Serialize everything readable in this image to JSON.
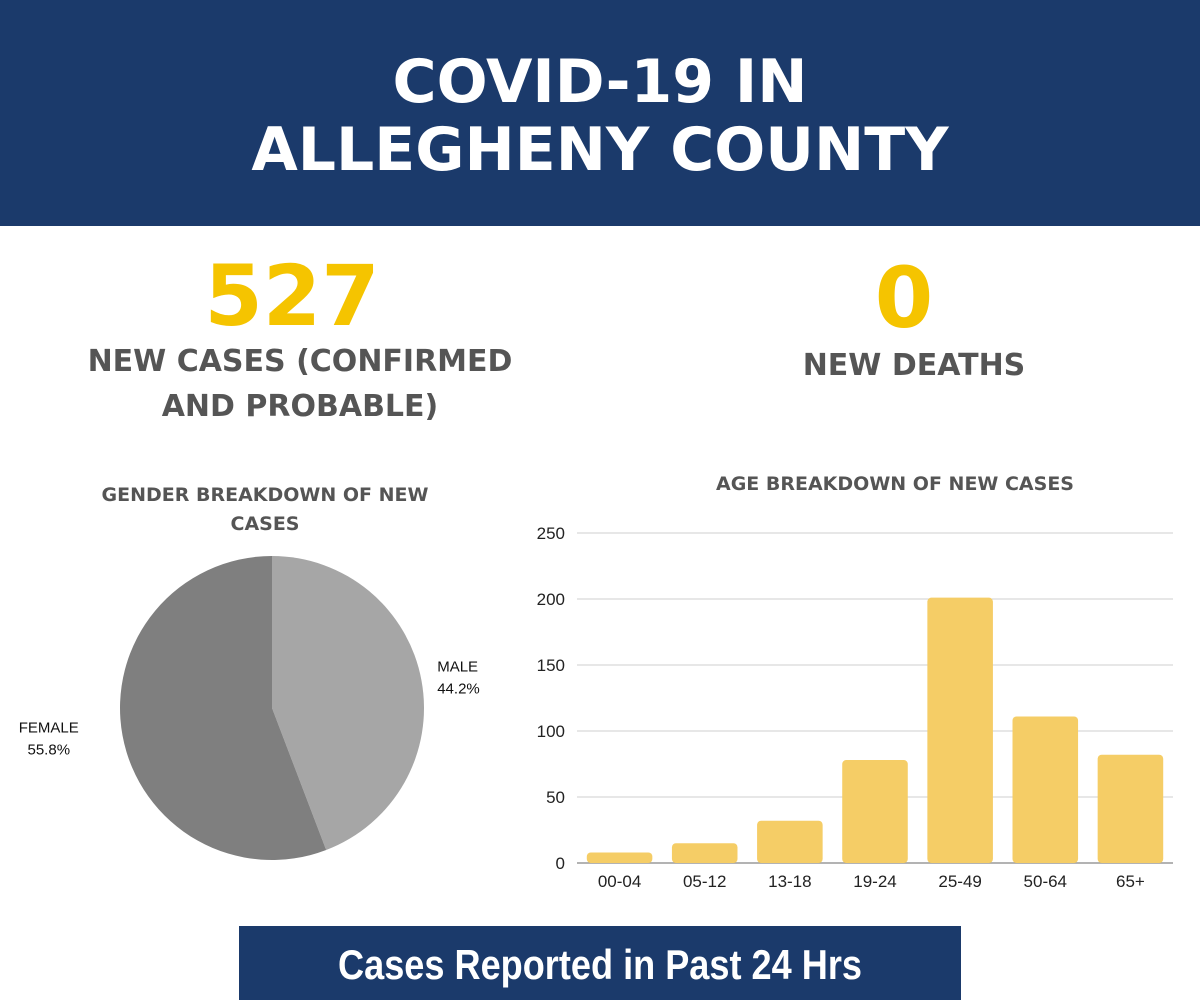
{
  "header": {
    "title_line1": "COVID-19 IN",
    "title_line2": "ALLEGHENY COUNTY"
  },
  "stats": {
    "new_cases_value": "527",
    "new_cases_label_line1": "NEW CASES (CONFIRMED",
    "new_cases_label_line2": "AND PROBABLE)",
    "new_deaths_value": "0",
    "new_deaths_label": "NEW DEATHS"
  },
  "colors": {
    "header_bg": "#1b3a6b",
    "accent_yellow": "#f5c400",
    "label_gray": "#555555",
    "bar_fill": "#f5cd66",
    "pie_female": "#7f7f7f",
    "pie_male": "#a6a6a6"
  },
  "chart_data": [
    {
      "type": "pie",
      "title_line1": "GENDER BREAKDOWN OF NEW",
      "title_line2": "CASES",
      "slices": [
        {
          "label": "MALE",
          "value": 44.2,
          "display": "44.2%",
          "color": "#a6a6a6"
        },
        {
          "label": "FEMALE",
          "value": 55.8,
          "display": "55.8%",
          "color": "#7f7f7f"
        }
      ],
      "legend": "none"
    },
    {
      "type": "bar",
      "title": "AGE BREAKDOWN OF  NEW CASES",
      "categories": [
        "00-04",
        "05-12",
        "13-18",
        "19-24",
        "25-49",
        "50-64",
        "65+"
      ],
      "values": [
        8,
        15,
        32,
        78,
        201,
        111,
        82
      ],
      "ylim": [
        0,
        250
      ],
      "yticks": [
        0,
        50,
        100,
        150,
        200,
        250
      ],
      "grid": true,
      "xlabel": "",
      "ylabel": ""
    }
  ],
  "footer": {
    "text": "Cases Reported in Past 24 Hrs"
  }
}
